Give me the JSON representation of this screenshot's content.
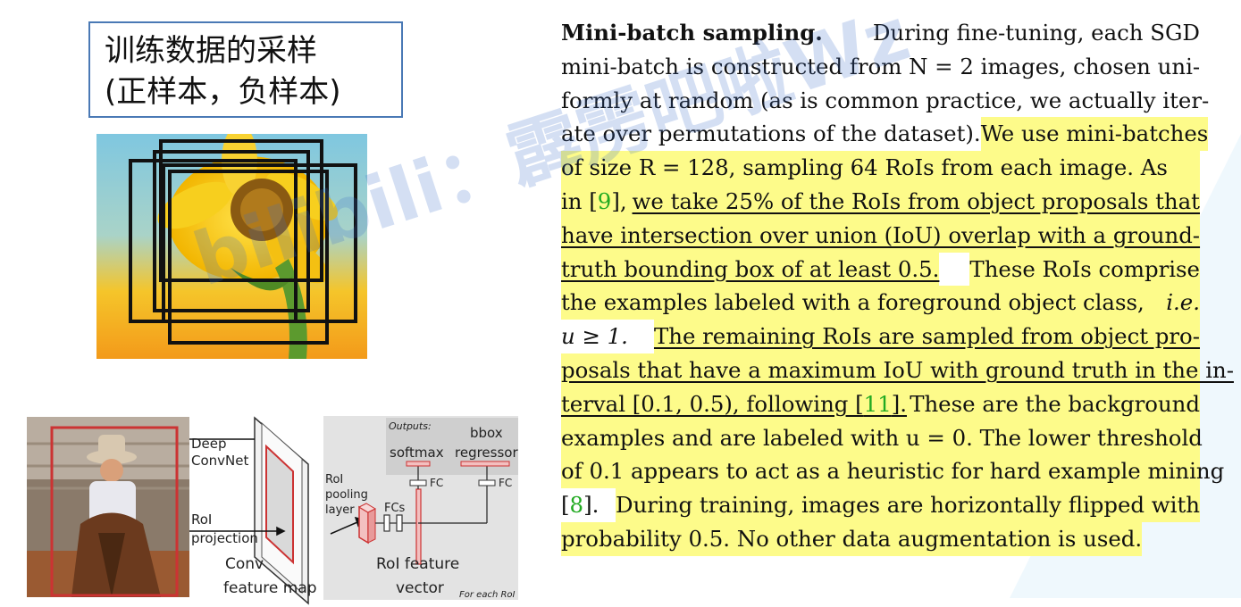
{
  "title": {
    "line1": "训练数据的采样",
    "line2": "(正样本，负样本)"
  },
  "diagram": {
    "deep_convnet": [
      "Deep",
      "ConvNet"
    ],
    "roi_projection": [
      "RoI",
      "projection"
    ],
    "conv_feature_map": [
      "Conv",
      "feature map"
    ],
    "roi_pooling": [
      "RoI",
      "pooling",
      "layer"
    ],
    "fcs": "FCs",
    "outputs": "Outputs:",
    "softmax": "softmax",
    "bbox_regressor": [
      "bbox",
      "regressor"
    ],
    "fc": "FC",
    "roi_feature_vector": [
      "RoI feature",
      "vector"
    ],
    "for_each_roi": "For each RoI"
  },
  "paper": {
    "l1_bold": "Mini-batch sampling.",
    "l1_rest": "During fine-tuning, each SGD",
    "l2": "mini-batch is constructed from N = 2 images, chosen uni-",
    "l3": "formly at random (as is common practice, we actually iter-",
    "l4_a": "ate over permutations of the dataset).",
    "l4_b": "We use mini-batches",
    "l5": "of size R = 128, sampling 64 RoIs from each image. As",
    "l6_a": "in [",
    "ref9": "9",
    "l6_b": "],",
    "l6_c": "we take 25% of the RoIs from object proposals that",
    "l7": "have intersection over union (IoU) overlap with a ground-",
    "l8_a": "truth bounding box of at least 0.5.",
    "l8_b": "These RoIs comprise",
    "l9_a": "the examples labeled with a foreground object class,",
    "l9_b": "i.e.",
    "l10_a": "u ≥ 1.",
    "l10_b": "The remaining RoIs are sampled from object pro-",
    "l11": "posals that have a maximum IoU with ground truth in the in-",
    "l12_a": "terval [0.1, 0.5), following [",
    "ref11": "11",
    "l12_b": "].",
    "l12_c": "These are the background",
    "l13": "examples and are labeled with u = 0. The lower threshold",
    "l14": "of 0.1 appears to act as a heuristic for hard example mining",
    "l15_a": "[",
    "ref8": "8",
    "l15_b": "].",
    "l15_c": "During training, images are horizontally flipped with",
    "l16": "probability 0.5. No other data augmentation is used."
  },
  "watermark": "bilibili：霹雳吧啦Wz",
  "colors": {
    "highlight": "#fdfb8a",
    "ref": "#22aa22",
    "box_border": "#4a79b5",
    "roi_box": "#cc3333"
  }
}
